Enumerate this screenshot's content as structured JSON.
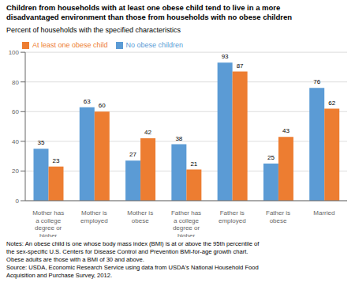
{
  "chart_data": {
    "type": "bar",
    "title": "Children from households with at least one obese child tend to live in a more\ndisadvantaged environment than those from households with no obese children",
    "ylabel": "Percent of households with the specified characteristics",
    "categories": [
      "Mother has\na college\ndegree or\nhigher",
      "Mother is\nemployed",
      "Mother is\nobese",
      "Father has\na college\ndegree or\nhigher",
      "Father is\nemployed",
      "Father is\nobese",
      "Married"
    ],
    "series": [
      {
        "name": "No obese children",
        "color": "#5b9bd5",
        "values": [
          35,
          63,
          27,
          38,
          93,
          25,
          76
        ]
      },
      {
        "name": "At least one obese child",
        "color": "#ed7d31",
        "values": [
          23,
          60,
          42,
          21,
          87,
          43,
          62
        ]
      }
    ],
    "ylim": [
      0,
      100
    ],
    "yticks": [
      0,
      20,
      40,
      60,
      80,
      100
    ],
    "grid": true,
    "legend": "upper left",
    "data_labels": true,
    "annotations": [
      "Notes: An obese child is one whose body mass index (BMI) is at or above the 95th percentile of\nthe sex-specific U.S. Centers for Disease Control and Prevention BMI-for-age growth chart.\nObese adults are those with a BMI of 30 and above.\nSource: USDA, Economic Research Service using data from USDA's National Household Food\nAcquisition and Purchase Survey, 2012."
    ]
  }
}
